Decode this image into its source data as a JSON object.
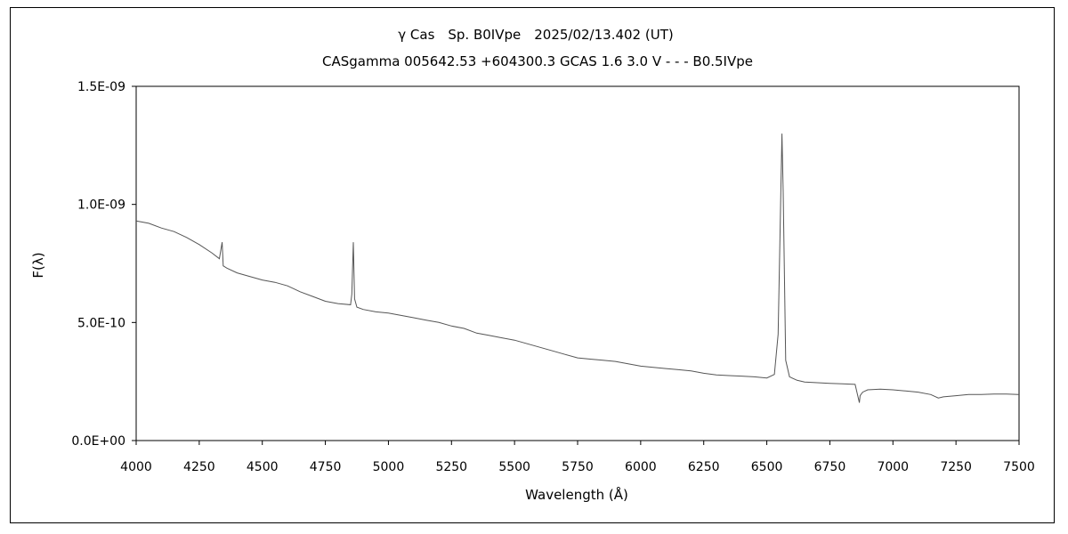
{
  "chart_data": {
    "type": "line",
    "title": "γ Cas　Sp. B0IVpe　2025/02/13.402 (UT)",
    "subtitle": "CASgamma 005642.53 +604300.3 GCAS 1.6 3.0 V - - - B0.5IVpe",
    "xlabel": "Wavelength (Å)",
    "ylabel": "F(λ)",
    "xlim": [
      4000,
      7500
    ],
    "ylim": [
      0,
      1.5e-09
    ],
    "x_ticks": [
      4000,
      4250,
      4500,
      4750,
      5000,
      5250,
      5500,
      5750,
      6000,
      6250,
      6500,
      6750,
      7000,
      7250,
      7500
    ],
    "y_ticks": [
      0,
      5e-10,
      1e-09,
      1.5e-09
    ],
    "x_tick_labels": [
      "4000",
      "4250",
      "4500",
      "4750",
      "5000",
      "5250",
      "5500",
      "5750",
      "6000",
      "6250",
      "6500",
      "6750",
      "7000",
      "7250",
      "7500"
    ],
    "y_tick_labels": [
      "0.0E+00",
      "5.0E-10",
      "1.0E-09",
      "1.5E-09"
    ],
    "grid": false,
    "legend": "none",
    "line_color": "#555555",
    "series": [
      {
        "x": [
          4000,
          4050,
          4100,
          4150,
          4200,
          4250,
          4300,
          4330,
          4341,
          4345,
          4360,
          4400,
          4450,
          4500,
          4550,
          4600,
          4650,
          4700,
          4750,
          4800,
          4850,
          4855,
          4861,
          4866,
          4875,
          4900,
          4950,
          5000,
          5050,
          5100,
          5150,
          5200,
          5250,
          5300,
          5350,
          5400,
          5450,
          5500,
          5550,
          5600,
          5650,
          5700,
          5750,
          5800,
          5850,
          5900,
          5950,
          6000,
          6050,
          6100,
          6150,
          6200,
          6250,
          6300,
          6350,
          6400,
          6450,
          6500,
          6530,
          6545,
          6560,
          6565,
          6575,
          6590,
          6620,
          6650,
          6700,
          6750,
          6800,
          6850,
          6867,
          6870,
          6880,
          6900,
          6950,
          7000,
          7050,
          7100,
          7150,
          7180,
          7200,
          7250,
          7300,
          7350,
          7400,
          7450,
          7500
        ],
        "y": [
          9.3e-10,
          9.2e-10,
          9e-10,
          8.85e-10,
          8.6e-10,
          8.3e-10,
          7.95e-10,
          7.7e-10,
          8.4e-10,
          7.4e-10,
          7.3e-10,
          7.1e-10,
          6.95e-10,
          6.8e-10,
          6.7e-10,
          6.55e-10,
          6.3e-10,
          6.1e-10,
          5.9e-10,
          5.8e-10,
          5.75e-10,
          6.2e-10,
          8.4e-10,
          6e-10,
          5.65e-10,
          5.55e-10,
          5.45e-10,
          5.4e-10,
          5.3e-10,
          5.2e-10,
          5.1e-10,
          5e-10,
          4.85e-10,
          4.75e-10,
          4.55e-10,
          4.45e-10,
          4.35e-10,
          4.25e-10,
          4.1e-10,
          3.95e-10,
          3.8e-10,
          3.65e-10,
          3.5e-10,
          3.45e-10,
          3.4e-10,
          3.35e-10,
          3.25e-10,
          3.15e-10,
          3.1e-10,
          3.05e-10,
          3e-10,
          2.95e-10,
          2.85e-10,
          2.78e-10,
          2.75e-10,
          2.73e-10,
          2.7e-10,
          2.65e-10,
          2.8e-10,
          4.5e-10,
          1.3e-09,
          1.05e-09,
          3.4e-10,
          2.7e-10,
          2.55e-10,
          2.48e-10,
          2.45e-10,
          2.42e-10,
          2.4e-10,
          2.38e-10,
          1.6e-10,
          1.9e-10,
          2.05e-10,
          2.15e-10,
          2.18e-10,
          2.15e-10,
          2.1e-10,
          2.05e-10,
          1.95e-10,
          1.8e-10,
          1.85e-10,
          1.9e-10,
          1.95e-10,
          1.95e-10,
          1.97e-10,
          1.97e-10,
          1.95e-10
        ]
      }
    ]
  }
}
